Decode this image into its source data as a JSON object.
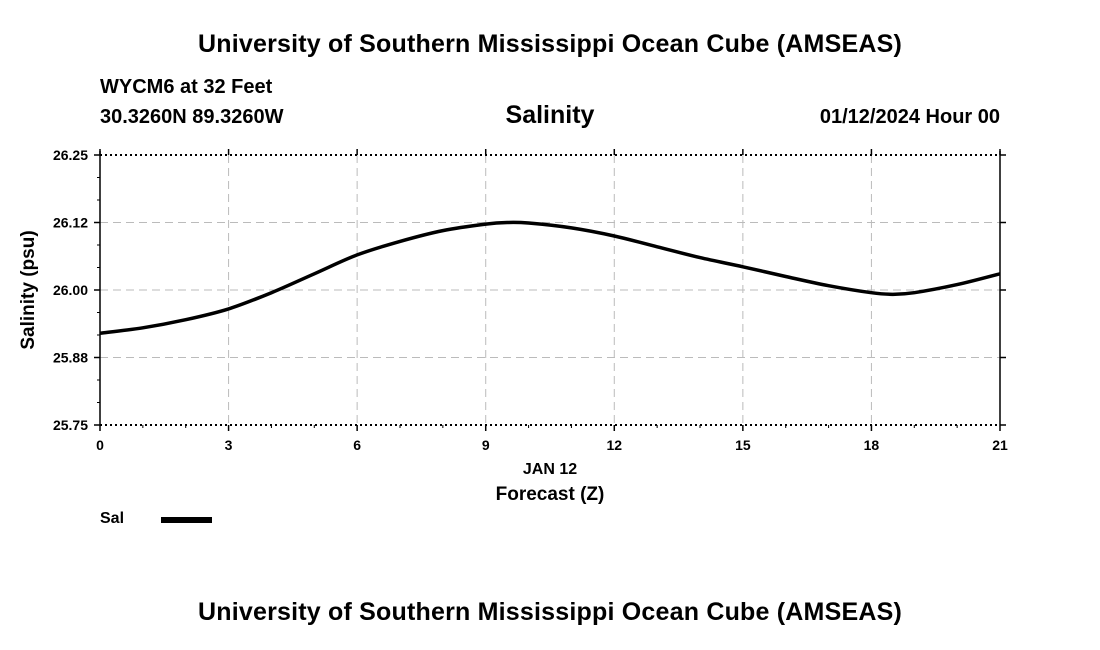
{
  "header": {
    "title": "University of Southern Mississippi Ocean Cube (AMSEAS)",
    "station": "WYCM6 at 32 Feet",
    "coords": "30.3260N  89.3260W",
    "datetime": "01/12/2024 Hour 00"
  },
  "footer": {
    "title": "University of Southern Mississippi Ocean Cube (AMSEAS)"
  },
  "chart_data": {
    "type": "line",
    "title": "Salinity",
    "xlabel": "Forecast (Z)",
    "xlabel_date": "JAN 12",
    "ylabel": "Salinity (psu)",
    "xlim": [
      0,
      21
    ],
    "ylim": [
      25.75,
      26.25
    ],
    "xticks": [
      0,
      3,
      6,
      9,
      12,
      15,
      18,
      21
    ],
    "xtick_labels": [
      "0",
      "3",
      "6",
      "9",
      "12",
      "15",
      "18",
      "21"
    ],
    "yticks": [
      25.75,
      25.875,
      26.0,
      26.125,
      26.25
    ],
    "ytick_labels": [
      "25.75",
      "25.88",
      "26.00",
      "26.12",
      "26.25"
    ],
    "grid": true,
    "legend_position": "bottom-left",
    "series": [
      {
        "name": "Sal",
        "color": "#000000",
        "x": [
          0,
          1,
          2,
          3,
          4,
          5,
          6,
          7,
          8,
          9,
          9.5,
          10,
          11,
          12,
          13,
          14,
          15,
          16,
          17,
          18,
          18.5,
          19,
          20,
          21
        ],
        "y": [
          25.92,
          25.93,
          25.945,
          25.965,
          25.995,
          26.03,
          26.065,
          26.09,
          26.11,
          26.122,
          26.125,
          26.124,
          26.115,
          26.1,
          26.08,
          26.06,
          26.043,
          26.025,
          26.008,
          25.995,
          25.992,
          25.995,
          26.01,
          26.03
        ]
      }
    ]
  }
}
